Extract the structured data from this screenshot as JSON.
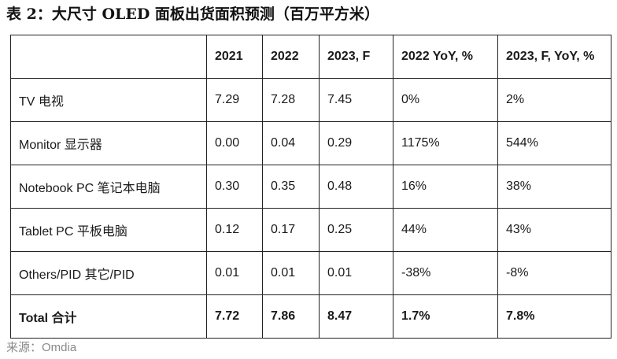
{
  "title": "表 2：大尺寸 OLED 面板出货面积预测（百万平方米）",
  "table": {
    "headers": [
      "",
      "2021",
      "2022",
      "2023, F",
      "2022 YoY, %",
      "2023, F, YoY, %"
    ],
    "rows": [
      [
        "TV 电视",
        "7.29",
        "7.28",
        "7.45",
        "0%",
        "2%"
      ],
      [
        "Monitor 显示器",
        "0.00",
        "0.04",
        "0.29",
        "1175%",
        "544%"
      ],
      [
        "Notebook PC 笔记本电脑",
        "0.30",
        "0.35",
        "0.48",
        "16%",
        "38%"
      ],
      [
        "Tablet PC 平板电脑",
        "0.12",
        "0.17",
        "0.25",
        "44%",
        "43%"
      ],
      [
        "Others/PID  其它/PID",
        "0.01",
        "0.01",
        "0.01",
        "-38%",
        "-8%"
      ],
      [
        "Total 合计",
        "7.72",
        "7.86",
        "8.47",
        "1.7%",
        "7.8%"
      ]
    ]
  },
  "source": "来源：Omdia"
}
